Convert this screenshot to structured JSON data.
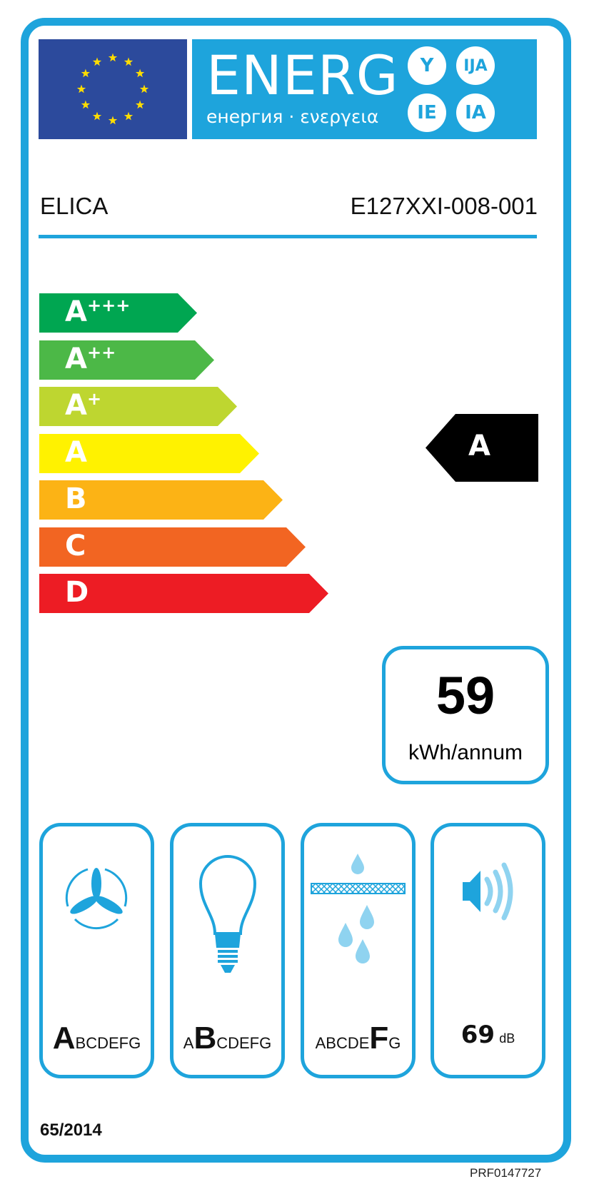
{
  "header": {
    "logo_text": "ENERG",
    "logo_subtitle": "енергия · ενεργεια",
    "language_suffixes": [
      "Y",
      "IJA",
      "IE",
      "IA"
    ]
  },
  "supplier": "ELICA",
  "model": "E127XXI-008-001",
  "energy_classes": [
    {
      "base": "A",
      "plus": "+++",
      "color": "#00a651"
    },
    {
      "base": "A",
      "plus": "++",
      "color": "#4cb847"
    },
    {
      "base": "A",
      "plus": "+",
      "color": "#bed630"
    },
    {
      "base": "A",
      "plus": "",
      "color": "#fff200"
    },
    {
      "base": "B",
      "plus": "",
      "color": "#fcb315"
    },
    {
      "base": "C",
      "plus": "",
      "color": "#f26522"
    },
    {
      "base": "D",
      "plus": "",
      "color": "#ed1c24"
    }
  ],
  "rating": "A",
  "consumption": {
    "value": "59",
    "unit": "kWh/annum"
  },
  "performance": [
    {
      "icon": "fan-icon",
      "selected": "A",
      "before": "",
      "after": "BCDEFG"
    },
    {
      "icon": "light-bulb-icon",
      "selected": "B",
      "before": "A",
      "after": "CDEFG"
    },
    {
      "icon": "grease-filter-icon",
      "selected": "F",
      "before": "ABCDE",
      "after": "G"
    },
    {
      "icon": "speaker-icon",
      "noise_value": "69",
      "noise_unit": "dB"
    }
  ],
  "regulation": "65/2014",
  "product_code": "PRF0147727",
  "colors": {
    "brand_blue": "#1ea4dc",
    "eu_blue": "#2c4a9c",
    "star_yellow": "#ffdd00"
  }
}
